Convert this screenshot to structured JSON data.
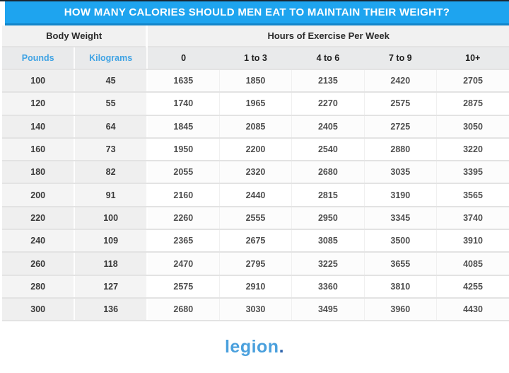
{
  "title": "HOW MANY CALORIES SHOULD MEN EAT TO MAINTAIN THEIR WEIGHT?",
  "table": {
    "group_headers": [
      {
        "label": "Body Weight",
        "span": 2
      },
      {
        "label": "Hours of Exercise Per Week",
        "span": 5
      }
    ],
    "columns": [
      "Pounds",
      "Kilograms",
      "0",
      "1 to 3",
      "4 to 6",
      "7 to 9",
      "10+"
    ],
    "rows": [
      [
        "100",
        "45",
        "1635",
        "1850",
        "2135",
        "2420",
        "2705"
      ],
      [
        "120",
        "55",
        "1740",
        "1965",
        "2270",
        "2575",
        "2875"
      ],
      [
        "140",
        "64",
        "1845",
        "2085",
        "2405",
        "2725",
        "3050"
      ],
      [
        "160",
        "73",
        "1950",
        "2200",
        "2540",
        "2880",
        "3220"
      ],
      [
        "180",
        "82",
        "2055",
        "2320",
        "2680",
        "3035",
        "3395"
      ],
      [
        "200",
        "91",
        "2160",
        "2440",
        "2815",
        "3190",
        "3565"
      ],
      [
        "220",
        "100",
        "2260",
        "2555",
        "2950",
        "3345",
        "3740"
      ],
      [
        "240",
        "109",
        "2365",
        "2675",
        "3085",
        "3500",
        "3910"
      ],
      [
        "260",
        "118",
        "2470",
        "2795",
        "3225",
        "3655",
        "4085"
      ],
      [
        "280",
        "127",
        "2575",
        "2910",
        "3360",
        "3810",
        "4255"
      ],
      [
        "300",
        "136",
        "2680",
        "3030",
        "3495",
        "3960",
        "4430"
      ]
    ]
  },
  "footer": {
    "logo_text": "legion",
    "logo_dot": "."
  },
  "colors": {
    "header_blue": "#1ea4ef",
    "header_border_blue": "#1285c9",
    "accent_blue_label": "#3fa3e4",
    "logo_blue": "#4aa0dd",
    "logo_dot_blue": "#2f64ad",
    "top_edge_line": "#1a2733"
  }
}
